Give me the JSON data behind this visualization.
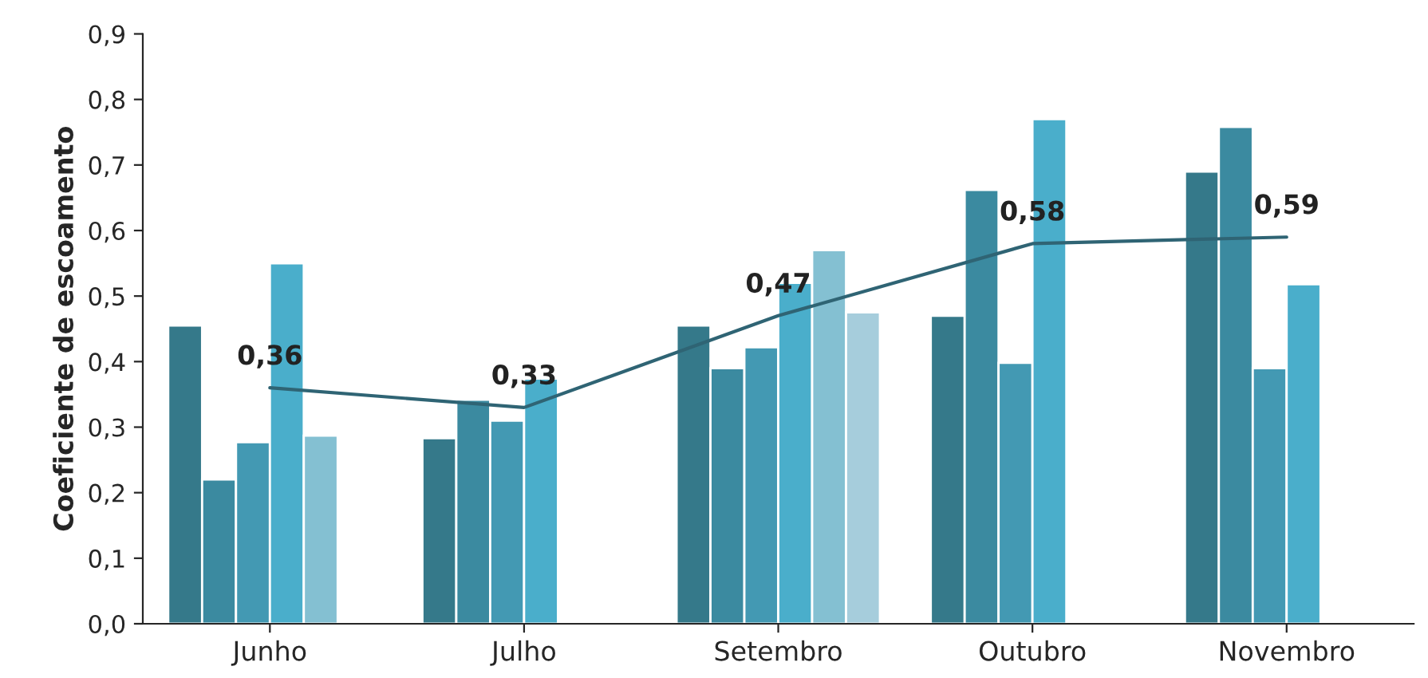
{
  "chart_data": {
    "type": "bar",
    "ylabel": "Coeficiente de escoamento",
    "categories": [
      "Junho",
      "Julho",
      "Setembro",
      "Outubro",
      "Novembro"
    ],
    "series": [
      {
        "color": "#35798a",
        "values": [
          0.455,
          0.283,
          0.455,
          0.47,
          0.69
        ]
      },
      {
        "color": "#3b8aa0",
        "values": [
          0.22,
          0.342,
          0.39,
          0.662,
          0.758
        ]
      },
      {
        "color": "#4399b3",
        "values": [
          0.277,
          0.31,
          0.422,
          0.398,
          0.39
        ]
      },
      {
        "color": "#4aaecb",
        "values": [
          0.55,
          0.374,
          0.52,
          0.77,
          0.518
        ]
      },
      {
        "color": "#84c0d2",
        "values": [
          0.287,
          null,
          0.57,
          null,
          null
        ]
      },
      {
        "color": "#a6cddc",
        "values": [
          null,
          null,
          0.475,
          null,
          null
        ]
      },
      {
        "type": "line",
        "color": "#2f6474",
        "values": [
          0.36,
          0.33,
          0.47,
          0.58,
          0.59
        ],
        "value_labels": [
          "0,36",
          "0,33",
          "0,47",
          "0,58",
          "0,59"
        ]
      }
    ],
    "ylim": [
      0,
      0.9
    ],
    "yticks": [
      {
        "value": 0,
        "label": "0,0"
      },
      {
        "value": 0.1,
        "label": "0,1"
      },
      {
        "value": 0.2,
        "label": "0,2"
      },
      {
        "value": 0.3,
        "label": "0,3"
      },
      {
        "value": 0.4,
        "label": "0,4"
      },
      {
        "value": 0.5,
        "label": "0,5"
      },
      {
        "value": 0.6,
        "label": "0,6"
      },
      {
        "value": 0.7,
        "label": "0,7"
      },
      {
        "value": 0.8,
        "label": "0,8"
      },
      {
        "value": 0.9,
        "label": "0,9"
      }
    ],
    "grid": false,
    "legend": false
  }
}
